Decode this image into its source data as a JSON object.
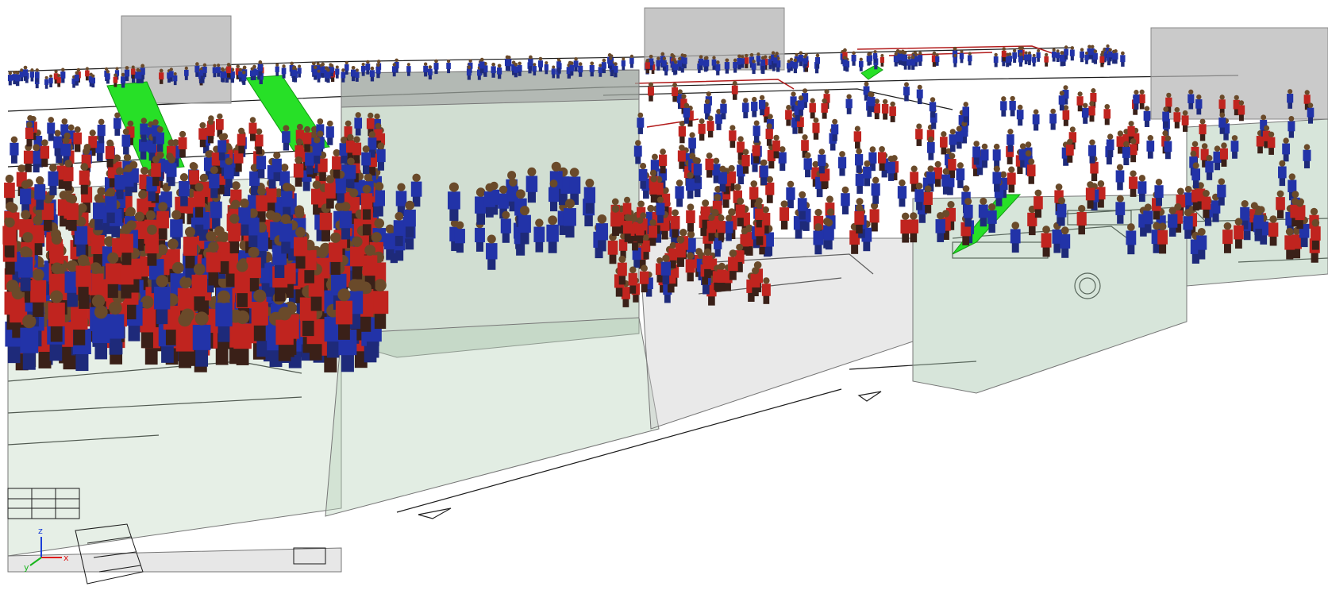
{
  "viewport": {
    "name": "3d-evacuation-simulation-view",
    "background": "#ffffff"
  },
  "scene": {
    "agent_groups": [
      {
        "name": "group-a",
        "color": "#2233a8",
        "approx_count": 1100
      },
      {
        "name": "group-b",
        "color": "#c0241f",
        "approx_count": 900
      }
    ],
    "colors": {
      "wall_glass": "#a9c9ad",
      "wall_grey": "#b3b3b3",
      "stair": "#27e027",
      "floorplan_lines": "#1a1a1a",
      "floorplan_red": "#b21b1b",
      "agent_head": "#6a4a2a",
      "agent_legs": "#3a2018"
    }
  },
  "axes": {
    "x_label": "x",
    "y_label": "y",
    "z_label": "z",
    "x_color": "#e01c1c",
    "y_color": "#19b51d",
    "z_color": "#1b3fd8"
  }
}
